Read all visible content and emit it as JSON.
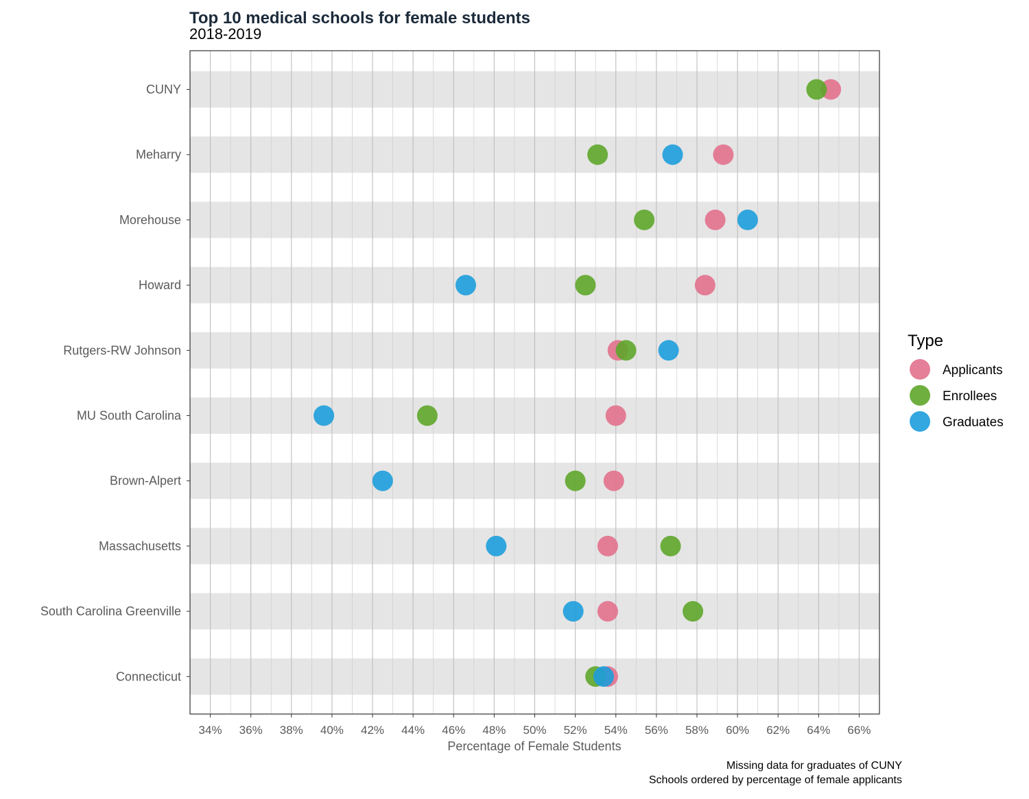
{
  "chart_data": {
    "type": "scatter",
    "title": "Top 10 medical schools for female students",
    "subtitle": "2018-2019",
    "xlabel": "Percentage of Female Students",
    "ylabel": "",
    "xlim": [
      33,
      67
    ],
    "x_ticks": [
      "34%",
      "36%",
      "38%",
      "40%",
      "42%",
      "44%",
      "46%",
      "48%",
      "50%",
      "52%",
      "54%",
      "56%",
      "58%",
      "60%",
      "62%",
      "64%",
      "66%"
    ],
    "x_tick_values": [
      34,
      36,
      38,
      40,
      42,
      44,
      46,
      48,
      50,
      52,
      54,
      56,
      58,
      60,
      62,
      64,
      66
    ],
    "categories": [
      "CUNY",
      "Meharry",
      "Morehouse",
      "Howard",
      "Rutgers-RW Johnson",
      "MU South Carolina",
      "Brown-Alpert",
      "Massachusetts",
      "South Carolina Greenville",
      "Connecticut"
    ],
    "series": [
      {
        "name": "Applicants",
        "color": "#e2718d",
        "values": [
          64.6,
          59.3,
          58.9,
          58.4,
          54.1,
          54.0,
          53.9,
          53.6,
          53.6,
          53.6
        ]
      },
      {
        "name": "Enrollees",
        "color": "#5ea62a",
        "values": [
          63.9,
          53.1,
          55.4,
          52.5,
          54.5,
          44.7,
          52.0,
          56.7,
          57.8,
          53.0
        ]
      },
      {
        "name": "Graduates",
        "color": "#1d9ddb",
        "values": [
          null,
          56.8,
          60.5,
          46.6,
          56.6,
          39.6,
          42.5,
          48.1,
          51.9,
          53.4
        ]
      }
    ],
    "legend": {
      "title": "Type",
      "placement": "right"
    },
    "grid": true,
    "captions": [
      "Missing data for graduates of CUNY",
      "Schools ordered by percentage of female applicants"
    ]
  }
}
